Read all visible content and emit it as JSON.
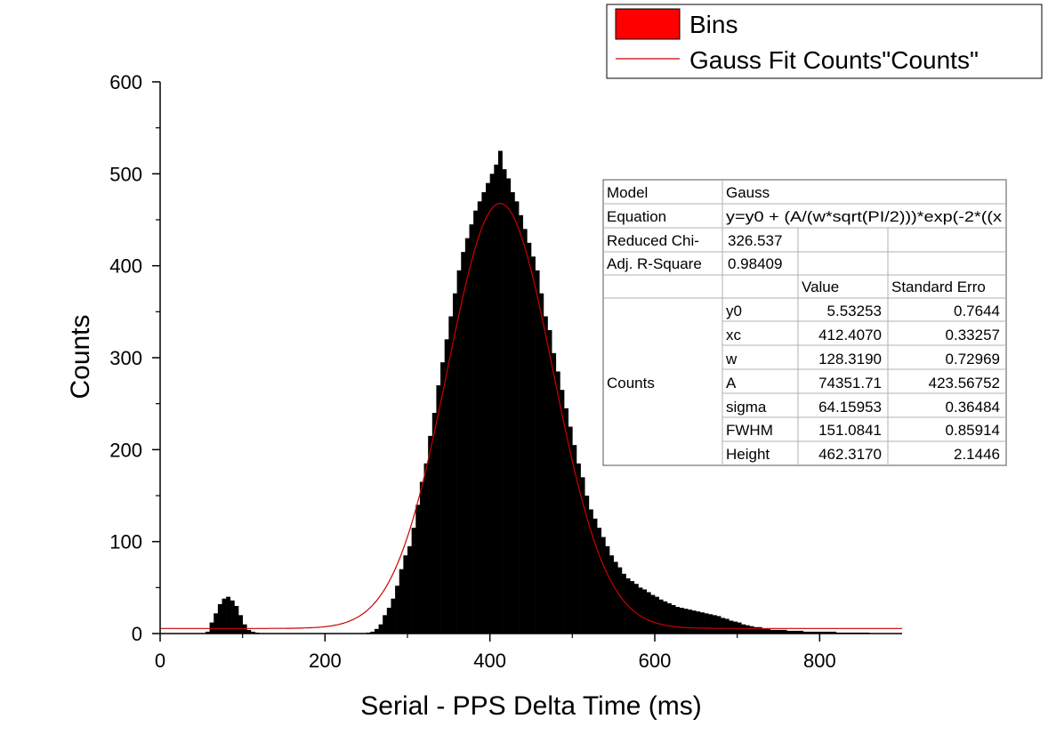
{
  "chart_data": {
    "type": "bar",
    "title": "",
    "xlabel": "Serial - PPS Delta Time (ms)",
    "ylabel": "Counts",
    "xlim": [
      0,
      900
    ],
    "ylim": [
      0,
      600
    ],
    "x_ticks": [
      "0",
      "200",
      "400",
      "600",
      "800"
    ],
    "y_ticks": [
      "0",
      "100",
      "200",
      "300",
      "400",
      "500",
      "600"
    ],
    "grid": false,
    "legend_position": "top-right",
    "legend": [
      {
        "label": "Bins",
        "kind": "swatch",
        "color": "#ff0000"
      },
      {
        "label": "Gauss Fit Counts\"Counts\"",
        "kind": "line",
        "color": "#cc0000"
      }
    ],
    "series": [
      {
        "name": "Bins",
        "color": "#000000",
        "x": [
          55,
          60,
          65,
          70,
          75,
          80,
          85,
          90,
          95,
          100,
          105,
          110,
          115,
          120,
          130,
          140,
          150,
          160,
          170,
          180,
          190,
          200,
          210,
          220,
          230,
          240,
          250,
          255,
          260,
          265,
          270,
          275,
          280,
          285,
          290,
          295,
          300,
          305,
          310,
          315,
          320,
          325,
          330,
          335,
          340,
          345,
          350,
          355,
          360,
          365,
          370,
          375,
          380,
          385,
          390,
          395,
          400,
          405,
          410,
          415,
          420,
          425,
          430,
          435,
          440,
          445,
          450,
          455,
          460,
          465,
          470,
          475,
          480,
          485,
          490,
          495,
          500,
          505,
          510,
          515,
          520,
          525,
          530,
          535,
          540,
          545,
          550,
          555,
          560,
          565,
          570,
          575,
          580,
          585,
          590,
          595,
          600,
          605,
          610,
          615,
          620,
          625,
          630,
          635,
          640,
          645,
          650,
          655,
          660,
          665,
          670,
          675,
          680,
          685,
          690,
          695,
          700,
          705,
          710,
          715,
          720,
          730,
          740,
          750,
          760,
          770,
          780,
          790,
          800,
          810,
          820,
          830,
          840,
          850,
          860,
          870,
          880,
          890,
          900
        ],
        "values": [
          2,
          12,
          22,
          32,
          38,
          40,
          36,
          30,
          20,
          10,
          4,
          2,
          1,
          0,
          0,
          0,
          0,
          0,
          0,
          0,
          0,
          0,
          0,
          0,
          0,
          0,
          1,
          2,
          5,
          10,
          20,
          28,
          38,
          52,
          70,
          85,
          95,
          115,
          140,
          165,
          185,
          215,
          240,
          270,
          295,
          320,
          345,
          370,
          395,
          415,
          430,
          445,
          460,
          470,
          480,
          490,
          500,
          510,
          525,
          505,
          495,
          480,
          470,
          455,
          440,
          425,
          410,
          395,
          370,
          345,
          330,
          305,
          285,
          265,
          245,
          225,
          205,
          185,
          170,
          150,
          135,
          125,
          115,
          105,
          95,
          85,
          78,
          72,
          65,
          60,
          57,
          54,
          50,
          48,
          45,
          42,
          40,
          37,
          35,
          33,
          31,
          29,
          28,
          27,
          26,
          25,
          24,
          23,
          22,
          21,
          20,
          19,
          17,
          16,
          14,
          13,
          12,
          10,
          9,
          8,
          7,
          5,
          4,
          4,
          3,
          3,
          2,
          2,
          2,
          2,
          1,
          1,
          1,
          1,
          0,
          0,
          0,
          0,
          0
        ]
      },
      {
        "name": "Gauss Fit Counts\"Counts\"",
        "type": "line",
        "color": "#cc0000",
        "function": "gauss",
        "params": {
          "y0": 5.53253,
          "xc": 412.407,
          "w": 128.319,
          "A": 74351.71
        }
      }
    ]
  },
  "fit_table": {
    "model_label": "Model",
    "model_value": "Gauss",
    "equation_label": "Equation",
    "equation_value": "y=y0 + (A/(w*sqrt(PI/2)))*exp(-2*((x",
    "chi_label": "Reduced Chi-",
    "chi_value": "326.537",
    "r2_label": "Adj. R-Square",
    "r2_value": "0.98409",
    "col_value": "Value",
    "col_error": "Standard Erro",
    "group_label": "Counts",
    "rows": [
      {
        "param": "y0",
        "value": "5.53253",
        "error": "0.7644"
      },
      {
        "param": "xc",
        "value": "412.4070",
        "error": "0.33257"
      },
      {
        "param": "w",
        "value": "128.3190",
        "error": "0.72969"
      },
      {
        "param": "A",
        "value": "74351.71",
        "error": "423.56752"
      },
      {
        "param": "sigma",
        "value": "64.15953",
        "error": "0.36484"
      },
      {
        "param": "FWHM",
        "value": "151.0841",
        "error": "0.85914"
      },
      {
        "param": "Height",
        "value": "462.3170",
        "error": "2.1446"
      }
    ]
  }
}
